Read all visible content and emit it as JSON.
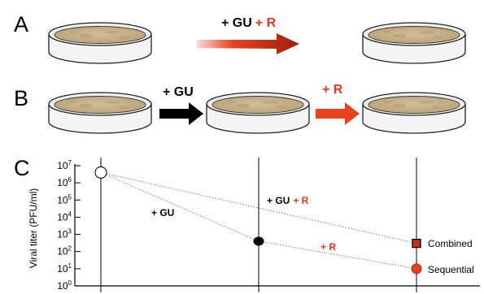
{
  "panels": {
    "a": {
      "letter": "A",
      "arrow_label": {
        "part1": "+ GU",
        "part2": "+ R"
      }
    },
    "b": {
      "letter": "B",
      "arrow1_label": "+ GU",
      "arrow2_label": "+ R"
    },
    "c": {
      "letter": "C"
    }
  },
  "colors": {
    "black": "#000000",
    "red": "#e03a1e",
    "dark_red": "#8b1a08",
    "dish_fill": "#c9b48c",
    "combined_marker": "#c0301a",
    "sequential_marker": "#e8401e"
  },
  "chart_data": {
    "type": "scatter",
    "ylabel": "Viral titer (PFU/ml)",
    "yscale": "log",
    "ylim": [
      1,
      10000000
    ],
    "y_tick_labels": [
      {
        "base": "10",
        "exp": "0"
      },
      {
        "base": "10",
        "exp": "1"
      },
      {
        "base": "10",
        "exp": "2"
      },
      {
        "base": "10",
        "exp": "3"
      },
      {
        "base": "10",
        "exp": "4"
      },
      {
        "base": "10",
        "exp": "5"
      },
      {
        "base": "10",
        "exp": "6"
      },
      {
        "base": "10",
        "exp": "7"
      }
    ],
    "x_positions": 3,
    "series": [
      {
        "name": "Combined",
        "label": "+ GU + R",
        "label_part1": "+ GU",
        "label_part2": "+ R",
        "points": [
          {
            "x": 0,
            "y": 4000000
          },
          {
            "x": 2,
            "y": 300
          }
        ]
      },
      {
        "name": "Sequential",
        "points": [
          {
            "x": 0,
            "y": 4000000
          },
          {
            "x": 1,
            "y": 400
          },
          {
            "x": 2,
            "y": 10
          }
        ],
        "segment_labels": [
          "+ GU",
          "+ R"
        ]
      }
    ]
  }
}
